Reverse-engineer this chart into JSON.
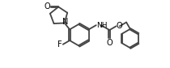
{
  "bg_color": "#ffffff",
  "line_color": "#444444",
  "line_width": 1.3,
  "font_size": 6.5,
  "fig_width": 2.1,
  "fig_height": 0.84,
  "dpi": 100,
  "xlim": [
    0.0,
    4.4
  ],
  "ylim": [
    0.1,
    1.75
  ]
}
